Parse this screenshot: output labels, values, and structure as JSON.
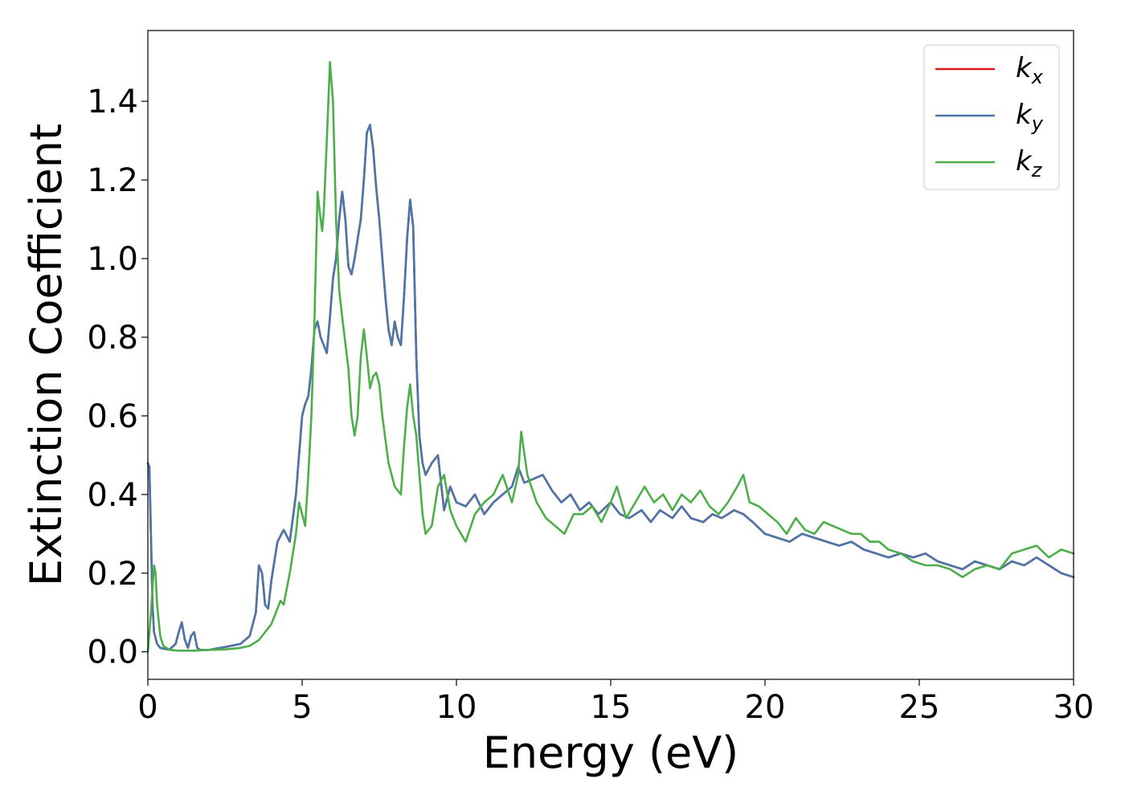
{
  "chart_data": {
    "type": "line",
    "xlabel": "Energy (eV)",
    "ylabel": "Extinction Coefficient",
    "xlim": [
      0,
      30
    ],
    "ylim": [
      -0.07,
      1.58
    ],
    "xticks": [
      0,
      5,
      10,
      15,
      20,
      25,
      30
    ],
    "yticks": [
      0.0,
      0.2,
      0.4,
      0.6,
      0.8,
      1.0,
      1.2,
      1.4
    ],
    "grid": false,
    "legend_position": "top-right",
    "series": [
      {
        "name": "k_x",
        "legend_base": "k",
        "legend_sub": "x",
        "color": "#e41a1c",
        "x": [
          0,
          0.05,
          0.1,
          0.15,
          0.2,
          0.3,
          0.4,
          0.5,
          0.7,
          0.9,
          1.0,
          1.1,
          1.2,
          1.3,
          1.4,
          1.5,
          1.6,
          1.7,
          1.8,
          2.0,
          2.2,
          2.5,
          3.0,
          3.3,
          3.5,
          3.6,
          3.7,
          3.8,
          3.9,
          4.0,
          4.2,
          4.4,
          4.6,
          4.8,
          5.0,
          5.1,
          5.2,
          5.3,
          5.4,
          5.5,
          5.6,
          5.7,
          5.8,
          5.9,
          6.0,
          6.1,
          6.2,
          6.3,
          6.4,
          6.5,
          6.6,
          6.7,
          6.8,
          6.9,
          7.0,
          7.1,
          7.2,
          7.3,
          7.4,
          7.5,
          7.6,
          7.7,
          7.8,
          7.9,
          8.0,
          8.1,
          8.2,
          8.3,
          8.4,
          8.5,
          8.6,
          8.7,
          8.8,
          8.9,
          9.0,
          9.2,
          9.4,
          9.6,
          9.8,
          10.0,
          10.3,
          10.6,
          10.9,
          11.2,
          11.5,
          11.8,
          12.0,
          12.2,
          12.5,
          12.8,
          13.1,
          13.4,
          13.7,
          14.0,
          14.3,
          14.6,
          15.0,
          15.3,
          15.6,
          16.0,
          16.3,
          16.6,
          17.0,
          17.3,
          17.6,
          18.0,
          18.3,
          18.6,
          19.0,
          19.3,
          19.6,
          20.0,
          20.4,
          20.8,
          21.2,
          21.6,
          22.0,
          22.4,
          22.8,
          23.2,
          23.6,
          24.0,
          24.4,
          24.8,
          25.2,
          25.6,
          26.0,
          26.4,
          26.8,
          27.2,
          27.6,
          28.0,
          28.4,
          28.8,
          29.2,
          29.6,
          30.0
        ],
        "y": [
          0.48,
          0.47,
          0.3,
          0.12,
          0.05,
          0.02,
          0.01,
          0.008,
          0.006,
          0.02,
          0.05,
          0.075,
          0.03,
          0.01,
          0.04,
          0.05,
          0.01,
          0.005,
          0.005,
          0.005,
          0.008,
          0.012,
          0.02,
          0.04,
          0.1,
          0.22,
          0.2,
          0.12,
          0.11,
          0.18,
          0.28,
          0.31,
          0.28,
          0.4,
          0.6,
          0.63,
          0.65,
          0.72,
          0.82,
          0.84,
          0.8,
          0.78,
          0.76,
          0.85,
          0.95,
          1.0,
          1.1,
          1.17,
          1.1,
          0.98,
          0.96,
          1.0,
          1.05,
          1.1,
          1.2,
          1.32,
          1.34,
          1.28,
          1.18,
          1.1,
          1.0,
          0.9,
          0.82,
          0.78,
          0.84,
          0.8,
          0.78,
          0.9,
          1.05,
          1.15,
          1.08,
          0.75,
          0.55,
          0.48,
          0.45,
          0.48,
          0.5,
          0.36,
          0.42,
          0.38,
          0.37,
          0.4,
          0.35,
          0.38,
          0.4,
          0.42,
          0.47,
          0.43,
          0.44,
          0.45,
          0.41,
          0.38,
          0.4,
          0.36,
          0.38,
          0.35,
          0.38,
          0.35,
          0.34,
          0.36,
          0.33,
          0.36,
          0.34,
          0.37,
          0.34,
          0.33,
          0.35,
          0.34,
          0.36,
          0.35,
          0.33,
          0.3,
          0.29,
          0.28,
          0.3,
          0.29,
          0.28,
          0.27,
          0.28,
          0.26,
          0.25,
          0.24,
          0.25,
          0.24,
          0.25,
          0.23,
          0.22,
          0.21,
          0.23,
          0.22,
          0.21,
          0.23,
          0.22,
          0.24,
          0.22,
          0.2,
          0.19
        ]
      },
      {
        "name": "k_y",
        "legend_base": "k",
        "legend_sub": "y",
        "color": "#4a77aa",
        "x": [
          0,
          0.05,
          0.1,
          0.15,
          0.2,
          0.3,
          0.4,
          0.5,
          0.7,
          0.9,
          1.0,
          1.1,
          1.2,
          1.3,
          1.4,
          1.5,
          1.6,
          1.7,
          1.8,
          2.0,
          2.2,
          2.5,
          3.0,
          3.3,
          3.5,
          3.6,
          3.7,
          3.8,
          3.9,
          4.0,
          4.2,
          4.4,
          4.6,
          4.8,
          5.0,
          5.1,
          5.2,
          5.3,
          5.4,
          5.5,
          5.6,
          5.7,
          5.8,
          5.9,
          6.0,
          6.1,
          6.2,
          6.3,
          6.4,
          6.5,
          6.6,
          6.7,
          6.8,
          6.9,
          7.0,
          7.1,
          7.2,
          7.3,
          7.4,
          7.5,
          7.6,
          7.7,
          7.8,
          7.9,
          8.0,
          8.1,
          8.2,
          8.3,
          8.4,
          8.5,
          8.6,
          8.7,
          8.8,
          8.9,
          9.0,
          9.2,
          9.4,
          9.6,
          9.8,
          10.0,
          10.3,
          10.6,
          10.9,
          11.2,
          11.5,
          11.8,
          12.0,
          12.2,
          12.5,
          12.8,
          13.1,
          13.4,
          13.7,
          14.0,
          14.3,
          14.6,
          15.0,
          15.3,
          15.6,
          16.0,
          16.3,
          16.6,
          17.0,
          17.3,
          17.6,
          18.0,
          18.3,
          18.6,
          19.0,
          19.3,
          19.6,
          20.0,
          20.4,
          20.8,
          21.2,
          21.6,
          22.0,
          22.4,
          22.8,
          23.2,
          23.6,
          24.0,
          24.4,
          24.8,
          25.2,
          25.6,
          26.0,
          26.4,
          26.8,
          27.2,
          27.6,
          28.0,
          28.4,
          28.8,
          29.2,
          29.6,
          30.0
        ],
        "y": [
          0.48,
          0.47,
          0.3,
          0.12,
          0.05,
          0.02,
          0.01,
          0.008,
          0.006,
          0.02,
          0.05,
          0.075,
          0.03,
          0.01,
          0.04,
          0.05,
          0.01,
          0.005,
          0.005,
          0.005,
          0.008,
          0.012,
          0.02,
          0.04,
          0.1,
          0.22,
          0.2,
          0.12,
          0.11,
          0.18,
          0.28,
          0.31,
          0.28,
          0.4,
          0.6,
          0.63,
          0.65,
          0.72,
          0.82,
          0.84,
          0.8,
          0.78,
          0.76,
          0.85,
          0.95,
          1.0,
          1.1,
          1.17,
          1.1,
          0.98,
          0.96,
          1.0,
          1.05,
          1.1,
          1.2,
          1.32,
          1.34,
          1.28,
          1.18,
          1.1,
          1.0,
          0.9,
          0.82,
          0.78,
          0.84,
          0.8,
          0.78,
          0.9,
          1.05,
          1.15,
          1.08,
          0.75,
          0.55,
          0.48,
          0.45,
          0.48,
          0.5,
          0.36,
          0.42,
          0.38,
          0.37,
          0.4,
          0.35,
          0.38,
          0.4,
          0.42,
          0.47,
          0.43,
          0.44,
          0.45,
          0.41,
          0.38,
          0.4,
          0.36,
          0.38,
          0.35,
          0.38,
          0.35,
          0.34,
          0.36,
          0.33,
          0.36,
          0.34,
          0.37,
          0.34,
          0.33,
          0.35,
          0.34,
          0.36,
          0.35,
          0.33,
          0.3,
          0.29,
          0.28,
          0.3,
          0.29,
          0.28,
          0.27,
          0.28,
          0.26,
          0.25,
          0.24,
          0.25,
          0.24,
          0.25,
          0.23,
          0.22,
          0.21,
          0.23,
          0.22,
          0.21,
          0.23,
          0.22,
          0.24,
          0.22,
          0.2,
          0.19
        ]
      },
      {
        "name": "k_z",
        "legend_base": "k",
        "legend_sub": "z",
        "color": "#4daf4a",
        "x": [
          0,
          0.1,
          0.2,
          0.25,
          0.3,
          0.4,
          0.5,
          0.7,
          1.0,
          1.5,
          2.0,
          2.5,
          3.0,
          3.3,
          3.6,
          3.8,
          4.0,
          4.2,
          4.3,
          4.4,
          4.6,
          4.8,
          4.9,
          5.0,
          5.1,
          5.2,
          5.3,
          5.4,
          5.5,
          5.6,
          5.65,
          5.7,
          5.8,
          5.9,
          6.0,
          6.1,
          6.2,
          6.3,
          6.5,
          6.6,
          6.7,
          6.8,
          6.9,
          7.0,
          7.1,
          7.2,
          7.3,
          7.4,
          7.5,
          7.6,
          7.8,
          8.0,
          8.2,
          8.3,
          8.4,
          8.5,
          8.6,
          8.7,
          8.8,
          8.9,
          9.0,
          9.2,
          9.4,
          9.6,
          9.8,
          10.0,
          10.3,
          10.6,
          10.9,
          11.2,
          11.5,
          11.8,
          12.0,
          12.1,
          12.3,
          12.6,
          12.9,
          13.2,
          13.5,
          13.8,
          14.1,
          14.4,
          14.7,
          15.0,
          15.2,
          15.5,
          15.8,
          16.1,
          16.4,
          16.7,
          17.0,
          17.3,
          17.6,
          17.9,
          18.2,
          18.5,
          18.8,
          19.1,
          19.3,
          19.5,
          19.8,
          20.1,
          20.4,
          20.7,
          21.0,
          21.3,
          21.6,
          21.9,
          22.2,
          22.5,
          22.8,
          23.1,
          23.4,
          23.7,
          24.0,
          24.4,
          24.8,
          25.2,
          25.6,
          26.0,
          26.4,
          26.8,
          27.2,
          27.6,
          28.0,
          28.4,
          28.8,
          29.2,
          29.6,
          30.0
        ],
        "y": [
          0.0,
          0.1,
          0.22,
          0.2,
          0.12,
          0.04,
          0.015,
          0.005,
          0.003,
          0.003,
          0.005,
          0.006,
          0.01,
          0.015,
          0.03,
          0.05,
          0.07,
          0.11,
          0.13,
          0.12,
          0.2,
          0.3,
          0.38,
          0.35,
          0.32,
          0.45,
          0.6,
          0.85,
          1.17,
          1.1,
          1.07,
          1.12,
          1.3,
          1.5,
          1.4,
          1.1,
          0.92,
          0.85,
          0.72,
          0.6,
          0.55,
          0.6,
          0.75,
          0.82,
          0.75,
          0.67,
          0.7,
          0.71,
          0.68,
          0.6,
          0.48,
          0.42,
          0.4,
          0.52,
          0.62,
          0.68,
          0.6,
          0.55,
          0.45,
          0.35,
          0.3,
          0.32,
          0.42,
          0.45,
          0.36,
          0.32,
          0.28,
          0.35,
          0.38,
          0.4,
          0.45,
          0.38,
          0.45,
          0.56,
          0.45,
          0.38,
          0.34,
          0.32,
          0.3,
          0.35,
          0.35,
          0.37,
          0.33,
          0.38,
          0.42,
          0.34,
          0.38,
          0.42,
          0.38,
          0.4,
          0.36,
          0.4,
          0.38,
          0.41,
          0.37,
          0.35,
          0.38,
          0.42,
          0.45,
          0.38,
          0.37,
          0.35,
          0.33,
          0.3,
          0.34,
          0.31,
          0.3,
          0.33,
          0.32,
          0.31,
          0.3,
          0.3,
          0.28,
          0.28,
          0.26,
          0.25,
          0.23,
          0.22,
          0.22,
          0.21,
          0.19,
          0.21,
          0.22,
          0.21,
          0.25,
          0.26,
          0.27,
          0.24,
          0.26,
          0.25
        ]
      }
    ]
  }
}
